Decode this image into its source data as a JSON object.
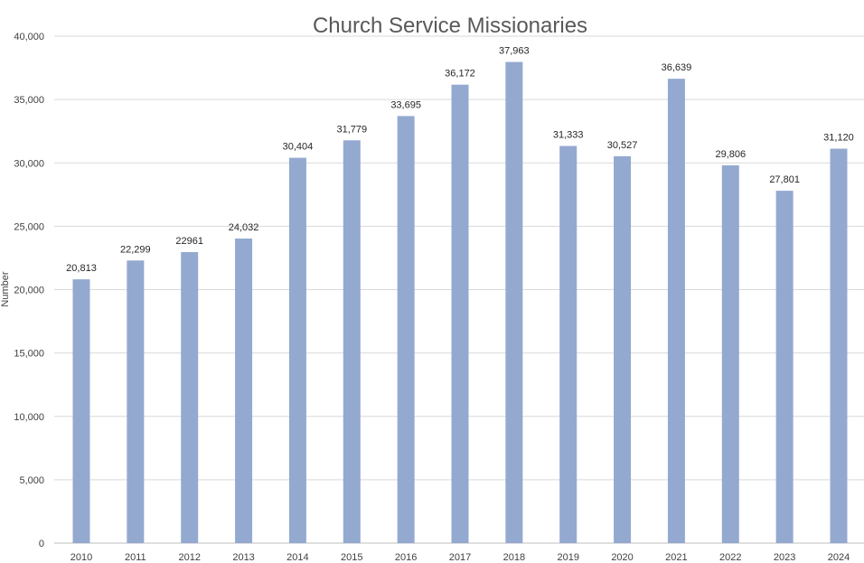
{
  "chart_data": {
    "type": "bar",
    "title": "Church Service Missionaries",
    "xlabel": "",
    "ylabel": "Number",
    "ylim": [
      0,
      40000
    ],
    "yticks": [
      0,
      5000,
      10000,
      15000,
      20000,
      25000,
      30000,
      35000,
      40000
    ],
    "ytick_labels": [
      "0",
      "5,000",
      "10,000",
      "15,000",
      "20,000",
      "25,000",
      "30,000",
      "35,000",
      "40,000"
    ],
    "categories": [
      "2010",
      "2011",
      "2012",
      "2013",
      "2014",
      "2015",
      "2016",
      "2017",
      "2018",
      "2019",
      "2020",
      "2021",
      "2022",
      "2023",
      "2024"
    ],
    "values": [
      20813,
      22299,
      22961,
      24032,
      30404,
      31779,
      33695,
      36172,
      37963,
      31333,
      30527,
      36639,
      29806,
      27801,
      31120
    ],
    "data_labels": [
      "20,813",
      "22,299",
      "22961",
      "24,032",
      "30,404",
      "31,779",
      "33,695",
      "36,172",
      "37,963",
      "31,333",
      "30,527",
      "36,639",
      "29,806",
      "27,801",
      "31,120"
    ],
    "bar_color": "#94a9d0",
    "grid": true,
    "legend": "none"
  }
}
